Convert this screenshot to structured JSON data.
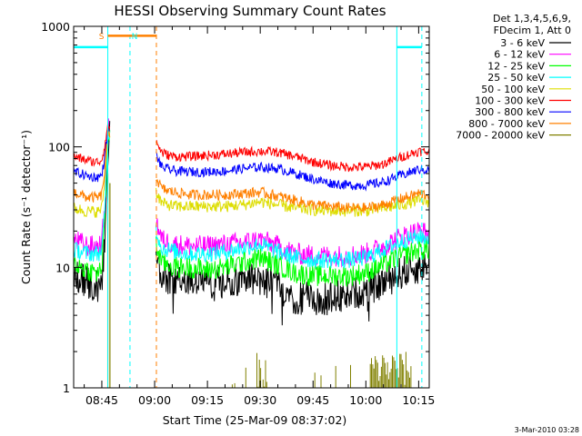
{
  "chart_data": {
    "type": "line",
    "title": "HESSI Observing Summary Count Rates",
    "xlabel": "Start Time (25-Mar-09 08:37:02)",
    "ylabel": "Count Rate (s⁻¹ detector⁻¹)",
    "x_tick_labels": [
      "08:45",
      "09:00",
      "09:15",
      "09:30",
      "09:45",
      "10:00",
      "10:15"
    ],
    "x_tick_minutes": [
      525,
      540,
      555,
      570,
      585,
      600,
      615
    ],
    "xlim_minutes": [
      517,
      618
    ],
    "y_scale": "log",
    "ylim": [
      1,
      1000
    ],
    "y_tick_labels": [
      "1",
      "10",
      "100",
      "1000"
    ],
    "y_tick_values": [
      1,
      10,
      100,
      1000
    ],
    "grid": false,
    "legend_position": "top-right",
    "legend_header": [
      "Det 1,3,4,5,6,9,",
      "FDecim 1, Att 0"
    ],
    "x_minutes": [
      517,
      519,
      521,
      523,
      524,
      525,
      526,
      526.5,
      527,
      540.5,
      542,
      544,
      546,
      550,
      555,
      560,
      565,
      570,
      575,
      580,
      585,
      590,
      595,
      600,
      605,
      610,
      615,
      618
    ],
    "series": [
      {
        "name": "3 - 6 keV",
        "color": "#000000",
        "values": [
          8.5,
          8,
          7.5,
          7,
          7,
          7.5,
          20,
          70,
          130,
          12,
          8,
          8,
          8,
          8,
          7.5,
          7.5,
          8,
          8,
          7,
          5.5,
          5.5,
          5.5,
          6,
          6.5,
          7.5,
          9,
          10,
          10.5
        ]
      },
      {
        "name": "6 - 12 keV",
        "color": "#ff00ff",
        "values": [
          17,
          16,
          15,
          15,
          15,
          16,
          40,
          110,
          150,
          24,
          17,
          16,
          15.5,
          15,
          15,
          15.5,
          16,
          17,
          15,
          13,
          12.5,
          12.5,
          12.5,
          13,
          15,
          18,
          20,
          19
        ]
      },
      {
        "name": "12 - 25 keV",
        "color": "#00ff00",
        "values": [
          11,
          10,
          9.5,
          9,
          9,
          10,
          30,
          90,
          130,
          15,
          11,
          10.5,
          10,
          10,
          9.5,
          10,
          11,
          12,
          10.5,
          9,
          8.5,
          8.5,
          8.5,
          9,
          10.5,
          12.5,
          14,
          14
        ]
      },
      {
        "name": "25 - 50 keV",
        "color": "#00ffff",
        "values": [
          14,
          13.5,
          13,
          13,
          13,
          14,
          35,
          95,
          140,
          20,
          14.5,
          14,
          13.5,
          13,
          13,
          13.5,
          14.5,
          15.5,
          13.5,
          12,
          11.5,
          11.5,
          11.5,
          12,
          14,
          16.5,
          18,
          17.5
        ]
      },
      {
        "name": "50 - 100 keV",
        "color": "#dddd00",
        "values": [
          31,
          30,
          29,
          29,
          29,
          31,
          60,
          110,
          135,
          42,
          34,
          33,
          32,
          32,
          32,
          32,
          33,
          35,
          33,
          31,
          30,
          29.5,
          29.5,
          29.5,
          31,
          33,
          36,
          35
        ]
      },
      {
        "name": "100 - 300 keV",
        "color": "#ff0000",
        "values": [
          82,
          80,
          77,
          75,
          75,
          78,
          110,
          140,
          150,
          110,
          90,
          85,
          83,
          83,
          85,
          87,
          90,
          92,
          90,
          83,
          75,
          70,
          68,
          68,
          72,
          82,
          92,
          90
        ]
      },
      {
        "name": "300 - 800 keV",
        "color": "#0000ff",
        "values": [
          62,
          60,
          57,
          56,
          56,
          58,
          90,
          125,
          140,
          85,
          68,
          65,
          63,
          62,
          62,
          63,
          66,
          68,
          66,
          60,
          54,
          50,
          48,
          48,
          51,
          58,
          65,
          64
        ]
      },
      {
        "name": "800 - 7000 keV",
        "color": "#ff8000",
        "values": [
          42,
          40,
          38,
          38,
          38,
          40,
          70,
          115,
          135,
          55,
          45,
          43,
          42,
          40,
          40,
          40,
          41,
          42,
          39,
          36,
          33,
          32,
          31,
          31,
          33,
          37,
          41,
          40
        ]
      },
      {
        "name": "7000 - 20000 keV",
        "color": "#808000",
        "values": []
      }
    ],
    "annotations": [
      {
        "text": "S",
        "color": "#ff8000"
      },
      {
        "text": "N",
        "color": "#00ffff"
      }
    ]
  },
  "timestamp": "3-Mar-2010 03:28"
}
